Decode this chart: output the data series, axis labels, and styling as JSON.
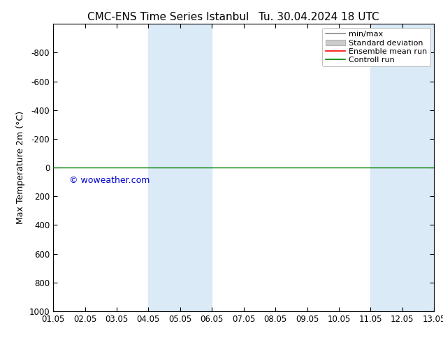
{
  "title": "CMC-ENS Time Series Istanbul",
  "title2": "Tu. 30.04.2024 18 UTC",
  "ylabel": "Max Temperature 2m (°C)",
  "ylim_top": -1000,
  "ylim_bottom": 1000,
  "yticks": [
    -800,
    -600,
    -400,
    -200,
    0,
    200,
    400,
    600,
    800,
    1000
  ],
  "xtick_labels": [
    "01.05",
    "02.05",
    "03.05",
    "04.05",
    "05.05",
    "06.05",
    "07.05",
    "08.05",
    "09.05",
    "10.05",
    "11.05",
    "12.05",
    "13.05"
  ],
  "xtick_positions": [
    0,
    1,
    2,
    3,
    4,
    5,
    6,
    7,
    8,
    9,
    10,
    11,
    12
  ],
  "watermark": "© woweather.com",
  "watermark_color": "#0000cc",
  "background_color": "#ffffff",
  "plot_bg_color": "#ffffff",
  "shaded_regions": [
    {
      "x_start": 3,
      "x_end": 5,
      "color": "#daeaf7"
    },
    {
      "x_start": 10,
      "x_end": 12,
      "color": "#daeaf7"
    }
  ],
  "control_run_y": 0,
  "control_run_color": "#008000",
  "ensemble_mean_color": "#ff0000",
  "minmax_color": "#888888",
  "stddev_color": "#cccccc",
  "legend_entries": [
    "min/max",
    "Standard deviation",
    "Ensemble mean run",
    "Controll run"
  ],
  "legend_colors": [
    "#888888",
    "#cccccc",
    "#ff0000",
    "#008000"
  ],
  "title_fontsize": 11,
  "axis_fontsize": 9,
  "tick_fontsize": 8.5,
  "legend_fontsize": 8
}
